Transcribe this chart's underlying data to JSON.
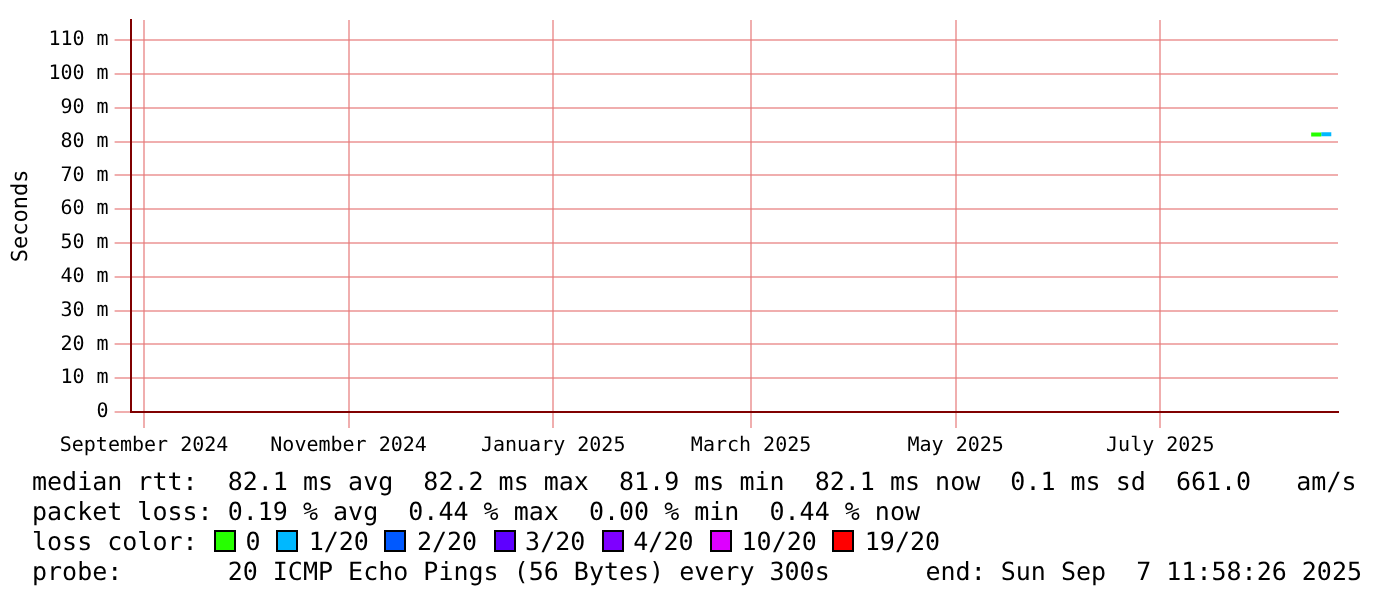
{
  "chart_data": {
    "type": "line",
    "ylabel": "Seconds",
    "legend_title": "loss color:",
    "legend": "bottom",
    "grid": true,
    "marker": "none",
    "xlim": [
      "2024-08-28",
      "2025-08-23"
    ],
    "xticks": [
      {
        "value": "2024-09-01",
        "label": "September 2024"
      },
      {
        "value": "2024-11-01",
        "label": "November 2024"
      },
      {
        "value": "2025-01-01",
        "label": "January 2025"
      },
      {
        "value": "2025-03-01",
        "label": "March 2025"
      },
      {
        "value": "2025-05-01",
        "label": "May 2025"
      },
      {
        "value": "2025-07-01",
        "label": "July 2025"
      }
    ],
    "ylim": [
      0,
      116
    ],
    "yticks": [
      0,
      {
        "value": 10,
        "label": "10 m"
      },
      {
        "value": 20,
        "label": "20 m"
      },
      {
        "value": 30,
        "label": "30 m"
      },
      {
        "value": 40,
        "label": "40 m"
      },
      {
        "value": 50,
        "label": "50 m"
      },
      {
        "value": 60,
        "label": "60 m"
      },
      {
        "value": 70,
        "label": "70 m"
      },
      {
        "value": 80,
        "label": "80 m"
      },
      {
        "value": 90,
        "label": "90 m"
      },
      {
        "value": 100,
        "label": "100 m"
      },
      {
        "value": 110,
        "label": "110 m"
      }
    ],
    "series": [
      {
        "name": "0",
        "color": "#26ff00",
        "x": [
          "2025-08-15",
          "2025-08-16",
          "2025-08-18"
        ],
        "values": [
          82.1,
          82.1,
          82.1
        ]
      },
      {
        "name": "1/20",
        "color": "#00b8ff",
        "x": [
          "2025-08-18",
          "2025-08-19",
          "2025-08-21"
        ],
        "values": [
          82.2,
          82.2,
          82.2
        ]
      },
      {
        "name": "2/20",
        "color": "#0059ff"
      },
      {
        "name": "3/20",
        "color": "#5e00ff"
      },
      {
        "name": "4/20",
        "color": "#7e00ff"
      },
      {
        "name": "10/20",
        "color": "#dd00ff"
      },
      {
        "name": "19/20",
        "color": "#ff0000"
      }
    ],
    "annotations": [
      "median rtt:  82.1 ms avg  82.2 ms max  81.9 ms min  82.1 ms now  0.1 ms sd  661.0   am/s",
      "packet loss: 0.19 % avg  0.44 % max  0.00 % min  0.44 % now",
      "probe:       20 ICMP Echo Pings (56 Bytes) every 300s",
      "end: Sun Sep  7 11:58:26 2025"
    ]
  }
}
